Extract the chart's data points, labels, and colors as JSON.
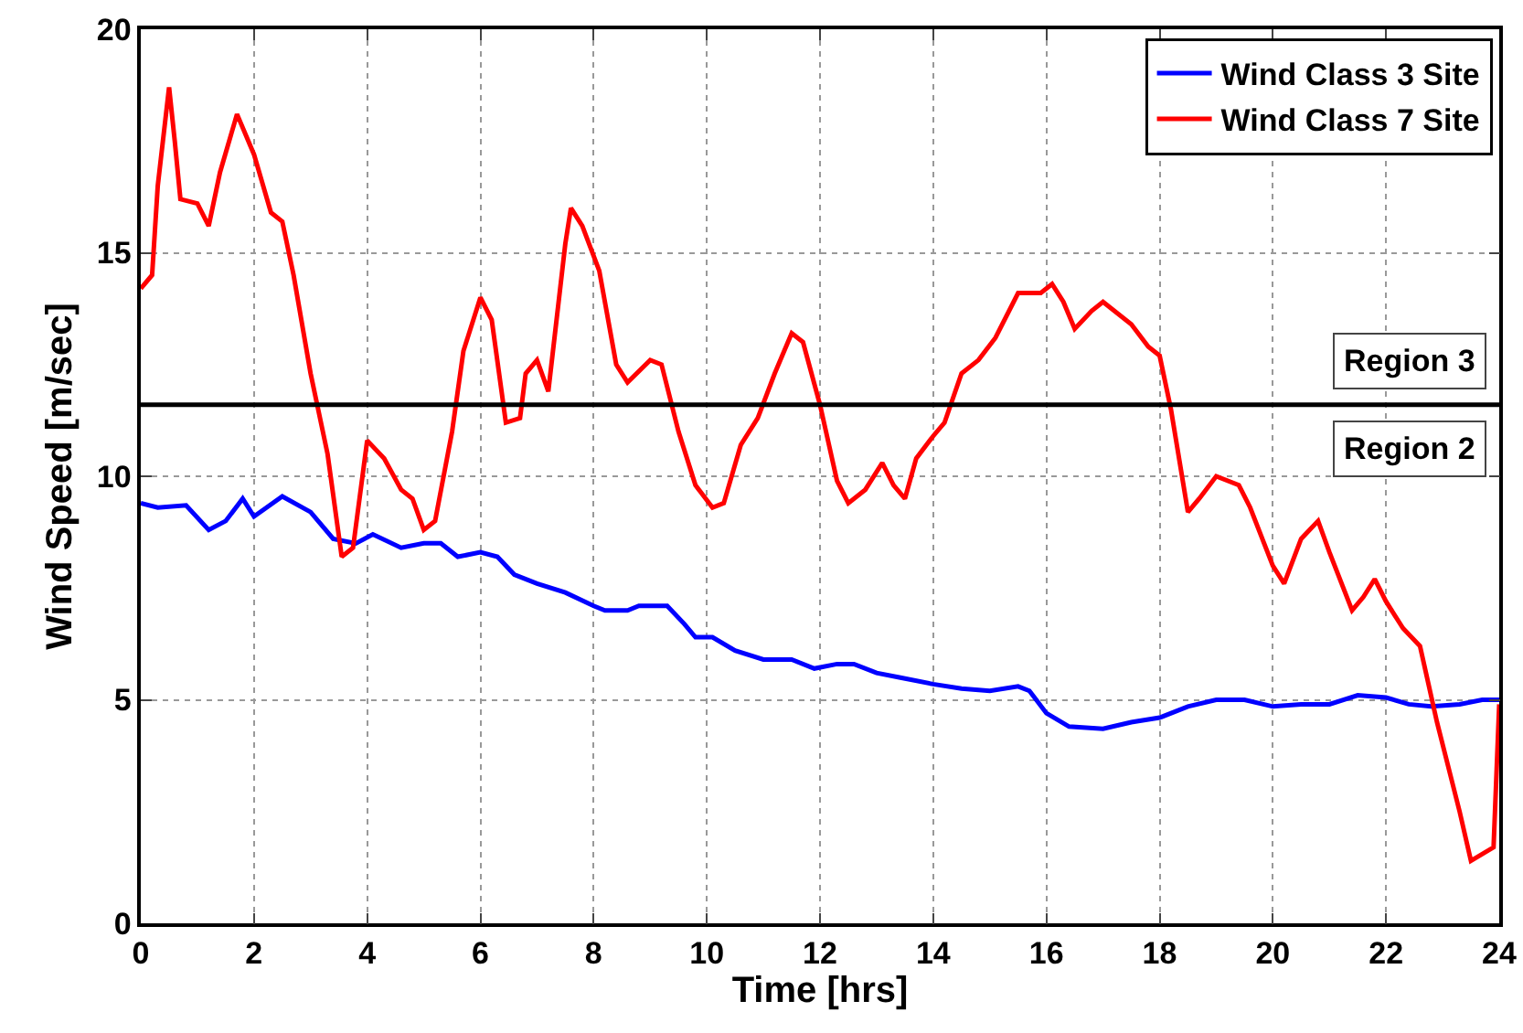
{
  "chart_data": {
    "type": "line",
    "xlabel": "Time [hrs]",
    "ylabel": "Wind Speed [m/sec]",
    "xlim": [
      0,
      24
    ],
    "xticks": [
      0,
      2,
      4,
      6,
      8,
      10,
      12,
      14,
      16,
      18,
      20,
      22,
      24
    ],
    "ylim": [
      0,
      20
    ],
    "yticks": [
      0,
      5,
      10,
      15,
      20
    ],
    "grid": true,
    "legend": "top right",
    "line_style": "solid",
    "marker": "none",
    "ref_lines": [
      {
        "axis": "y",
        "value": 11.6,
        "color": "#000000"
      }
    ],
    "annotations": [
      "Region 3",
      "Region 2"
    ],
    "series": [
      {
        "name": "Wind Class 3 Site",
        "color": "#0000ff",
        "x": [
          0,
          0.3,
          0.8,
          1.2,
          1.5,
          1.8,
          2.0,
          2.5,
          3.0,
          3.4,
          3.8,
          4.1,
          4.6,
          5.0,
          5.3,
          5.6,
          6.0,
          6.3,
          6.6,
          7.0,
          7.5,
          8.0,
          8.2,
          8.6,
          8.8,
          9.3,
          9.6,
          9.8,
          10.1,
          10.5,
          11.0,
          11.5,
          11.9,
          12.3,
          12.6,
          13.0,
          13.4,
          14.0,
          14.5,
          15.0,
          15.5,
          15.7,
          16.0,
          16.4,
          17.0,
          17.5,
          18.0,
          18.5,
          19.0,
          19.5,
          20.0,
          20.5,
          21.0,
          21.5,
          22.0,
          22.4,
          22.8,
          23.3,
          23.7,
          24.0
        ],
        "values": [
          9.4,
          9.3,
          9.35,
          8.8,
          9.0,
          9.5,
          9.1,
          9.55,
          9.2,
          8.6,
          8.5,
          8.7,
          8.4,
          8.5,
          8.5,
          8.2,
          8.3,
          8.2,
          7.8,
          7.6,
          7.4,
          7.1,
          7.0,
          7.0,
          7.1,
          7.1,
          6.7,
          6.4,
          6.4,
          6.1,
          5.9,
          5.9,
          5.7,
          5.8,
          5.8,
          5.6,
          5.5,
          5.35,
          5.25,
          5.2,
          5.3,
          5.2,
          4.7,
          4.4,
          4.35,
          4.5,
          4.6,
          4.85,
          5.0,
          5.0,
          4.85,
          4.9,
          4.9,
          5.1,
          5.05,
          4.9,
          4.85,
          4.9,
          5.0,
          5.0
        ]
      },
      {
        "name": "Wind Class 7 Site",
        "color": "#ff0000",
        "x": [
          0,
          0.2,
          0.3,
          0.5,
          0.6,
          0.7,
          1.0,
          1.2,
          1.4,
          1.7,
          2.0,
          2.3,
          2.5,
          2.7,
          3.0,
          3.3,
          3.55,
          3.75,
          4.0,
          4.3,
          4.6,
          4.8,
          5.0,
          5.2,
          5.5,
          5.7,
          6.0,
          6.2,
          6.45,
          6.7,
          6.8,
          7.0,
          7.2,
          7.5,
          7.6,
          7.8,
          8.1,
          8.4,
          8.6,
          9.0,
          9.2,
          9.5,
          9.8,
          10.1,
          10.3,
          10.6,
          10.9,
          11.2,
          11.5,
          11.7,
          12.0,
          12.3,
          12.5,
          12.8,
          13.1,
          13.3,
          13.5,
          13.7,
          14.0,
          14.2,
          14.5,
          14.8,
          15.1,
          15.5,
          15.9,
          16.1,
          16.3,
          16.5,
          16.8,
          17.0,
          17.5,
          17.8,
          18.0,
          18.2,
          18.5,
          18.7,
          19.0,
          19.4,
          19.6,
          20.0,
          20.2,
          20.5,
          20.8,
          21.0,
          21.4,
          21.6,
          21.8,
          22.0,
          22.3,
          22.6,
          22.9,
          23.3,
          23.5,
          23.9,
          24.0
        ],
        "values": [
          14.2,
          14.5,
          16.5,
          18.7,
          17.5,
          16.2,
          16.1,
          15.6,
          16.8,
          18.1,
          17.2,
          15.9,
          15.7,
          14.5,
          12.3,
          10.5,
          8.2,
          8.4,
          10.8,
          10.4,
          9.7,
          9.5,
          8.8,
          9.0,
          11.0,
          12.8,
          14.0,
          13.5,
          11.2,
          11.3,
          12.3,
          12.6,
          11.9,
          15.2,
          16.0,
          15.6,
          14.6,
          12.5,
          12.1,
          12.6,
          12.5,
          11.0,
          9.8,
          9.3,
          9.4,
          10.7,
          11.3,
          12.3,
          13.2,
          13.0,
          11.6,
          9.9,
          9.4,
          9.7,
          10.3,
          9.8,
          9.5,
          10.4,
          10.9,
          11.2,
          12.3,
          12.6,
          13.1,
          14.1,
          14.1,
          14.3,
          13.9,
          13.3,
          13.7,
          13.9,
          13.4,
          12.9,
          12.7,
          11.5,
          9.2,
          9.5,
          10.0,
          9.8,
          9.3,
          8.0,
          7.6,
          8.6,
          9.0,
          8.3,
          7.0,
          7.3,
          7.7,
          7.2,
          6.6,
          6.2,
          4.5,
          2.5,
          1.4,
          1.7,
          4.9
        ]
      }
    ]
  }
}
